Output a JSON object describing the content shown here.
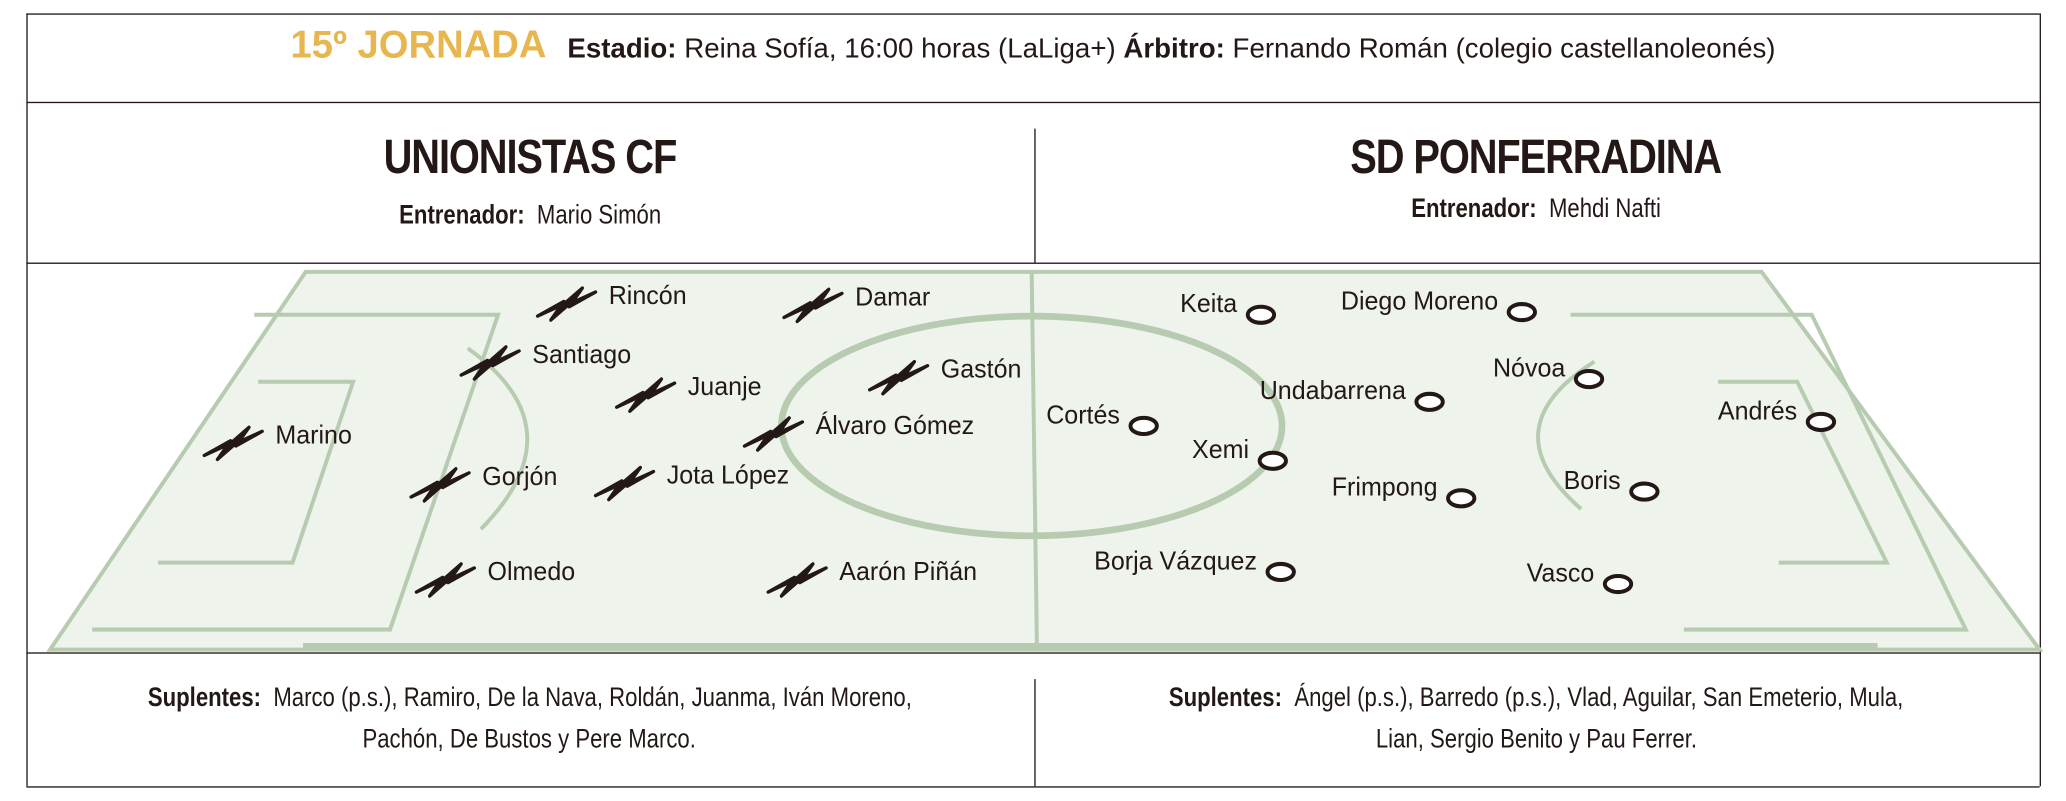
{
  "header": {
    "round": "15º JORNADA",
    "stadium_label": "Estadio:",
    "stadium_value": "Reina Sofía, 16:00 horas (LaLiga+)",
    "referee_label": "Árbitro:",
    "referee_value": "Fernando Román  (colegio castellanoleonés)"
  },
  "colors": {
    "accent": "#e8b64f",
    "pitch": "#eef3ec",
    "pitch_lines": "#b7cbb0",
    "text": "#231815"
  },
  "home": {
    "name": "UNIONISTAS CF",
    "coach_label": "Entrenador:",
    "coach": "Mario Simón",
    "marker_icon": "cross-marker",
    "players": [
      "Rincón",
      "Damar",
      "Santiago",
      "Juanje",
      "Gastón",
      "Álvaro Gómez",
      "Marino",
      "Gorjón",
      "Jota López",
      "Olmedo",
      "Aarón Piñán"
    ],
    "subs_label": "Suplentes:",
    "subs_line1": "Marco (p.s.), Ramiro, De la Nava, Roldán, Juanma, Iván Moreno,",
    "subs_line2": "Pachón, De Bustos y Pere Marco."
  },
  "away": {
    "name": "SD PONFERRADINA",
    "coach_label": "Entrenador:",
    "coach": "Mehdi Nafti",
    "marker_icon": "ring-marker",
    "players": [
      "Keita",
      "Diego Moreno",
      "Nóvoa",
      "Undabarrena",
      "Andrés",
      "Cortés",
      "Xemi",
      "Frimpong",
      "Boris",
      "Borja Vázquez",
      "Vasco"
    ],
    "subs_label": "Suplentes:",
    "subs_line1": "Ángel (p.s.), Barredo (p.s.), Vlad, Aguilar, San Emeterio, Mula,",
    "subs_line2": "Lian, Sergio Benito y Pau Ferrer."
  }
}
